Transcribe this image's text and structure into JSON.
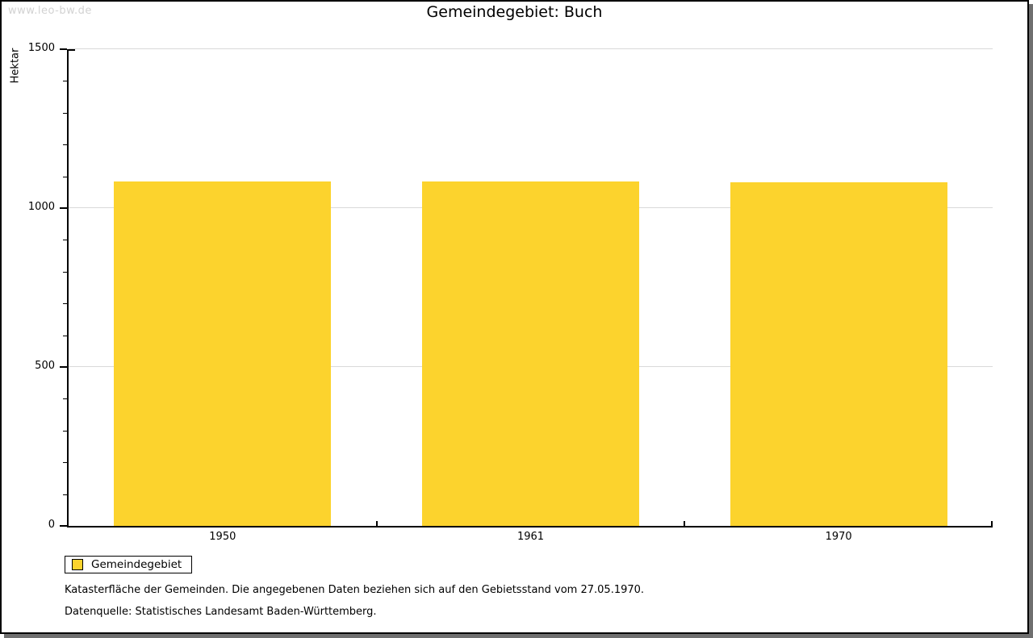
{
  "watermark": "www.leo-bw.de",
  "title": "Gemeindegebiet: Buch",
  "chart_data": {
    "type": "bar",
    "title": "Gemeindegebiet: Buch",
    "categories": [
      "1950",
      "1961",
      "1970"
    ],
    "series": [
      {
        "name": "Gemeindegebiet",
        "color": "#fcd32d",
        "values": [
          1084,
          1084,
          1082
        ]
      }
    ],
    "xlabel": "",
    "ylabel": "Hektar",
    "ylim": [
      0,
      1500
    ],
    "yticks": [
      0,
      500,
      1000,
      1500
    ],
    "minor_tick_step": 100,
    "grid": "horizontal-major",
    "gridline_color": "#d9d9d9",
    "legend_position": "bottom-left-outside"
  },
  "legend": {
    "items": [
      {
        "label": "Gemeindegebiet",
        "color": "#fcd32d"
      }
    ]
  },
  "footnotes": [
    "Katasterfläche der Gemeinden. Die angegebenen Daten beziehen sich auf den Gebietsstand vom 27.05.1970.",
    "Datenquelle: Statistisches Landesamt Baden-Württemberg."
  ]
}
